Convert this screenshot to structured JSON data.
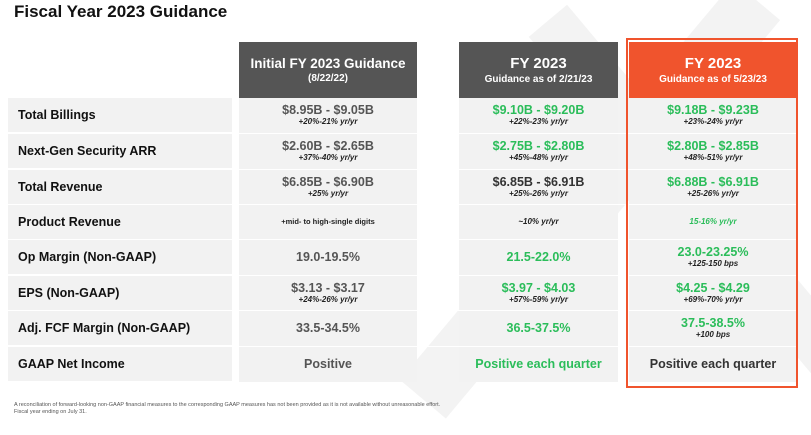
{
  "title": "Fiscal Year 2023 Guidance",
  "columns": [
    {
      "title": "Initial FY 2023 Guidance",
      "subtitle": "(8/22/22)",
      "color": "#555555"
    },
    {
      "title": "FY 2023",
      "subtitle": "Guidance as of 2/21/23",
      "color": "#555555"
    },
    {
      "title": "FY 2023",
      "subtitle": "Guidance as of 5/23/23",
      "color": "#f0542d"
    }
  ],
  "rows": [
    {
      "label": "Total Billings",
      "cells": [
        {
          "value": "$8.95B - $9.05B",
          "sub": "+20%-21% yr/yr"
        },
        {
          "value": "$9.10B - $9.20B",
          "sub": "+22%-23% yr/yr"
        },
        {
          "value": "$9.18B - $9.23B",
          "sub": "+23%-24% yr/yr"
        }
      ]
    },
    {
      "label": "Next-Gen Security ARR",
      "cells": [
        {
          "value": "$2.60B - $2.65B",
          "sub": "+37%-40% yr/yr"
        },
        {
          "value": "$2.75B - $2.80B",
          "sub": "+45%-48% yr/yr"
        },
        {
          "value": "$2.80B - $2.85B",
          "sub": "+48%-51% yr/yr"
        }
      ]
    },
    {
      "label": "Total Revenue",
      "cells": [
        {
          "value": "$6.85B - $6.90B",
          "sub": "+25% yr/yr"
        },
        {
          "value": "$6.85B - $6.91B",
          "sub": "+25%-26% yr/yr"
        },
        {
          "value": "$6.88B - $6.91B",
          "sub": "+25-26% yr/yr"
        }
      ]
    },
    {
      "label": "Product Revenue",
      "cells": [
        {
          "value": "",
          "sub": "+mid- to high-single digits"
        },
        {
          "value": "",
          "sub": "~10% yr/yr"
        },
        {
          "value": "",
          "sub": "15-16% yr/yr"
        }
      ]
    },
    {
      "label": "Op Margin (Non-GAAP)",
      "cells": [
        {
          "value": "19.0-19.5%",
          "sub": ""
        },
        {
          "value": "21.5-22.0%",
          "sub": ""
        },
        {
          "value": "23.0-23.25%",
          "sub": "+125-150 bps"
        }
      ]
    },
    {
      "label": "EPS (Non-GAAP)",
      "cells": [
        {
          "value": "$3.13 - $3.17",
          "sub": "+24%-26% yr/yr"
        },
        {
          "value": "$3.97 - $4.03",
          "sub": "+57%-59% yr/yr"
        },
        {
          "value": "$4.25 - $4.29",
          "sub": "+69%-70% yr/yr"
        }
      ]
    },
    {
      "label": "Adj. FCF Margin (Non-GAAP)",
      "cells": [
        {
          "value": "33.5-34.5%",
          "sub": ""
        },
        {
          "value": "36.5-37.5%",
          "sub": ""
        },
        {
          "value": "37.5-38.5%",
          "sub": "+100 bps"
        }
      ]
    },
    {
      "label": "GAAP Net Income",
      "cells": [
        {
          "value": "Positive",
          "sub": ""
        },
        {
          "value": "Positive each quarter",
          "sub": ""
        },
        {
          "value": "Positive each quarter",
          "sub": ""
        }
      ]
    }
  ],
  "footnote": {
    "line1": "A reconciliation of forward-looking non-GAAP financial measures to the corresponding GAAP measures has not been provided as it is not available without unreasonable effort.",
    "line2": "Fiscal year ending on July 31."
  },
  "colors": {
    "accent": "#f0542d",
    "green": "#2bbd5a",
    "header_grey": "#555555"
  }
}
